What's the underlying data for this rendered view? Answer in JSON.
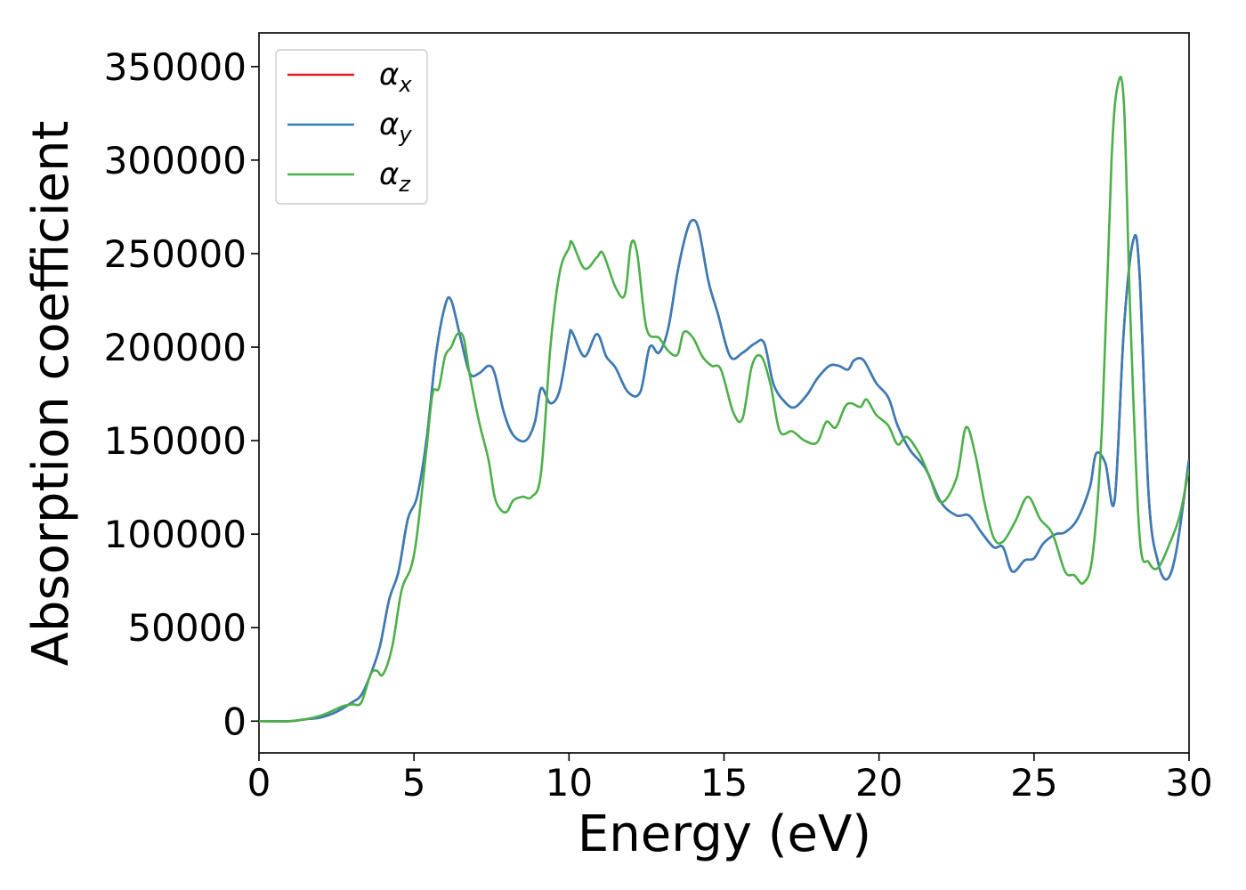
{
  "chart_data": {
    "type": "line",
    "title": "",
    "xlabel": "Energy (eV)",
    "ylabel": "Absorption coefficient",
    "xlim": [
      0,
      30
    ],
    "ylim": [
      -17000,
      368000
    ],
    "x_ticks": [
      "0",
      "5",
      "10",
      "15",
      "20",
      "25",
      "30"
    ],
    "y_ticks": [
      "0",
      "50000",
      "100000",
      "150000",
      "200000",
      "250000",
      "300000",
      "350000"
    ],
    "grid": false,
    "legend_position": "top-left",
    "colors": {
      "alpha_x": "#e41a1c",
      "alpha_y": "#377eb8",
      "alpha_z": "#4daf4a"
    },
    "series": [
      {
        "name": "αx",
        "legend_base": "α",
        "legend_sub": "x",
        "color_key": "alpha_x",
        "x": [
          0,
          1,
          1.5,
          2,
          2.5,
          3,
          3.3,
          3.6,
          3.9,
          4.2,
          4.5,
          4.8,
          5.1,
          5.4,
          5.7,
          6.0,
          6.2,
          6.5,
          6.8,
          7.1,
          7.4,
          7.6,
          7.9,
          8.2,
          8.6,
          8.9,
          9.1,
          9.4,
          9.7,
          10.0,
          10.1,
          10.5,
          10.9,
          11.2,
          11.5,
          11.9,
          12.3,
          12.6,
          12.9,
          13.2,
          13.5,
          13.8,
          14.0,
          14.2,
          14.5,
          14.8,
          15.2,
          15.6,
          16.0,
          16.3,
          16.6,
          17.0,
          17.3,
          17.7,
          18.0,
          18.4,
          18.7,
          19.0,
          19.2,
          19.5,
          19.9,
          20.3,
          20.6,
          21.0,
          21.5,
          22.0,
          22.5,
          22.9,
          23.3,
          23.7,
          24.0,
          24.3,
          24.7,
          25.0,
          25.3,
          25.7,
          26.0,
          26.4,
          26.8,
          27.0,
          27.3,
          27.6,
          27.9,
          28.2,
          28.4,
          28.7,
          29.0,
          29.3,
          29.6,
          30.0
        ],
        "y": [
          0,
          0,
          1000,
          2000,
          5000,
          10000,
          14000,
          25000,
          40000,
          65000,
          80000,
          108000,
          120000,
          150000,
          195000,
          222000,
          225000,
          205000,
          186000,
          186000,
          190000,
          186000,
          165000,
          153000,
          150000,
          160000,
          178000,
          170000,
          177000,
          205000,
          208000,
          195000,
          207000,
          195000,
          189000,
          176000,
          176000,
          200000,
          197000,
          210000,
          240000,
          262000,
          268000,
          262000,
          235000,
          218000,
          195000,
          197000,
          202000,
          202000,
          180000,
          170000,
          168000,
          175000,
          183000,
          190000,
          190000,
          188000,
          193000,
          193000,
          181000,
          173000,
          158000,
          145000,
          135000,
          117000,
          110000,
          110000,
          101000,
          93000,
          93000,
          80000,
          86000,
          87000,
          95000,
          100000,
          101000,
          108000,
          125000,
          143000,
          138000,
          118000,
          210000,
          257000,
          240000,
          120000,
          85000,
          76000,
          92000,
          140000
        ]
      },
      {
        "name": "αy",
        "legend_base": "α",
        "legend_sub": "y",
        "color_key": "alpha_y",
        "x": [
          0,
          1,
          1.5,
          2,
          2.5,
          3,
          3.3,
          3.6,
          3.9,
          4.2,
          4.5,
          4.8,
          5.1,
          5.4,
          5.7,
          6.0,
          6.2,
          6.5,
          6.8,
          7.1,
          7.4,
          7.6,
          7.9,
          8.2,
          8.6,
          8.9,
          9.1,
          9.4,
          9.7,
          10.0,
          10.1,
          10.5,
          10.9,
          11.2,
          11.5,
          11.9,
          12.3,
          12.6,
          12.9,
          13.2,
          13.5,
          13.8,
          14.0,
          14.2,
          14.5,
          14.8,
          15.2,
          15.6,
          16.0,
          16.3,
          16.6,
          17.0,
          17.3,
          17.7,
          18.0,
          18.4,
          18.7,
          19.0,
          19.2,
          19.5,
          19.9,
          20.3,
          20.6,
          21.0,
          21.5,
          22.0,
          22.5,
          22.9,
          23.3,
          23.7,
          24.0,
          24.3,
          24.7,
          25.0,
          25.3,
          25.7,
          26.0,
          26.4,
          26.8,
          27.0,
          27.3,
          27.6,
          27.9,
          28.2,
          28.4,
          28.7,
          29.0,
          29.3,
          29.6,
          30.0
        ],
        "y": [
          0,
          0,
          1000,
          2000,
          5000,
          10000,
          14000,
          25000,
          40000,
          65000,
          80000,
          108000,
          120000,
          150000,
          195000,
          222000,
          225000,
          205000,
          186000,
          186000,
          190000,
          186000,
          165000,
          153000,
          150000,
          160000,
          178000,
          170000,
          177000,
          205000,
          208000,
          195000,
          207000,
          195000,
          189000,
          176000,
          176000,
          200000,
          197000,
          210000,
          240000,
          262000,
          268000,
          262000,
          235000,
          218000,
          195000,
          197000,
          202000,
          202000,
          180000,
          170000,
          168000,
          175000,
          183000,
          190000,
          190000,
          188000,
          193000,
          193000,
          181000,
          173000,
          158000,
          145000,
          135000,
          117000,
          110000,
          110000,
          101000,
          93000,
          93000,
          80000,
          86000,
          87000,
          95000,
          100000,
          101000,
          108000,
          125000,
          143000,
          138000,
          118000,
          210000,
          257000,
          240000,
          120000,
          85000,
          76000,
          92000,
          140000
        ]
      },
      {
        "name": "αz",
        "legend_base": "α",
        "legend_sub": "z",
        "color_key": "alpha_z",
        "x": [
          0,
          1,
          1.5,
          2,
          2.3,
          2.7,
          3.0,
          3.3,
          3.6,
          3.8,
          4.0,
          4.3,
          4.6,
          4.9,
          5.1,
          5.4,
          5.6,
          5.8,
          6.0,
          6.2,
          6.4,
          6.6,
          6.8,
          7.1,
          7.4,
          7.6,
          7.8,
          8.0,
          8.2,
          8.5,
          8.8,
          9.1,
          9.4,
          9.7,
          10.0,
          10.1,
          10.5,
          10.9,
          11.1,
          11.5,
          11.8,
          12.0,
          12.2,
          12.5,
          12.9,
          13.2,
          13.5,
          13.7,
          14.0,
          14.3,
          14.6,
          14.9,
          15.3,
          15.6,
          15.9,
          16.2,
          16.5,
          16.8,
          17.2,
          17.6,
          18.0,
          18.3,
          18.6,
          18.9,
          19.1,
          19.4,
          19.6,
          19.9,
          20.3,
          20.6,
          20.9,
          21.3,
          21.6,
          22.0,
          22.5,
          22.8,
          23.1,
          23.4,
          23.7,
          24.0,
          24.4,
          24.8,
          25.2,
          25.6,
          26.0,
          26.3,
          26.6,
          26.9,
          27.2,
          27.5,
          27.7,
          27.9,
          28.1,
          28.4,
          28.7,
          29.0,
          29.4,
          29.7,
          30.0
        ],
        "y": [
          0,
          0,
          1000,
          3000,
          5000,
          8000,
          9000,
          10000,
          25000,
          27000,
          25000,
          40000,
          70000,
          82000,
          100000,
          145000,
          175000,
          178000,
          195000,
          200000,
          207000,
          205000,
          185000,
          160000,
          140000,
          120000,
          113000,
          112000,
          118000,
          120000,
          120000,
          133000,
          200000,
          240000,
          253000,
          256000,
          242000,
          248000,
          250000,
          232000,
          228000,
          255000,
          250000,
          210000,
          205000,
          198000,
          196000,
          208000,
          205000,
          195000,
          190000,
          188000,
          165000,
          162000,
          190000,
          195000,
          180000,
          155000,
          155000,
          150000,
          149000,
          160000,
          157000,
          168000,
          170000,
          168000,
          172000,
          164000,
          158000,
          148000,
          152000,
          143000,
          132000,
          117000,
          130000,
          157000,
          143000,
          117000,
          98000,
          96000,
          107000,
          120000,
          108000,
          100000,
          80000,
          78000,
          74000,
          90000,
          160000,
          300000,
          340000,
          330000,
          220000,
          100000,
          85000,
          82000,
          96000,
          110000,
          135000
        ]
      }
    ]
  }
}
